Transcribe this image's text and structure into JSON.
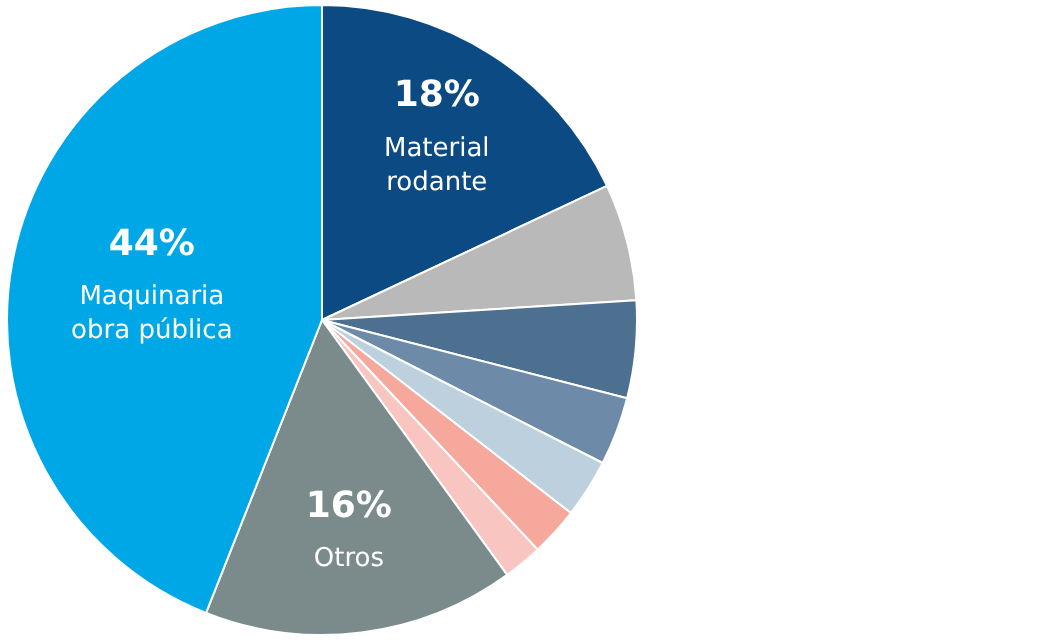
{
  "chart_data": {
    "type": "pie",
    "categories": [
      "Material rodante",
      null,
      null,
      null,
      null,
      null,
      null,
      "Otros",
      "Maquinaria obra pública"
    ],
    "values": [
      18,
      6,
      5,
      3.5,
      3,
      2.5,
      2,
      16,
      44
    ],
    "colors": [
      "#0b4a82",
      "#b9b9b9",
      "#4d6f90",
      "#6d8ba8",
      "#bdd0de",
      "#f5a89b",
      "#f9c5c1",
      "#7b8b8c",
      "#00a7e7"
    ],
    "value_labels": [
      "18%",
      null,
      null,
      null,
      null,
      null,
      null,
      "16%",
      "44%"
    ],
    "legend": false
  }
}
